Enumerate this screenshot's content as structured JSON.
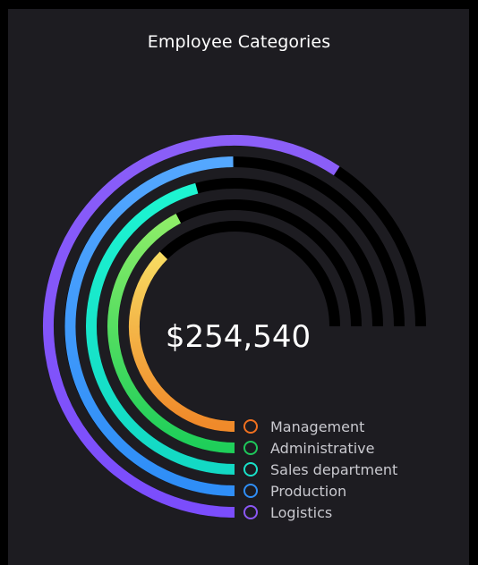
{
  "title": "Employee Categories",
  "total": "$254,540",
  "chart_data": {
    "type": "radial-bar",
    "title": "Employee Categories",
    "center_label": "$254,540",
    "max_angle": 270,
    "series": [
      {
        "name": "Management",
        "fraction": 0.5,
        "colors": [
          "#f08a2a",
          "#f9ee6f"
        ],
        "marker": "#f0701f"
      },
      {
        "name": "Administrative",
        "fraction": 0.565,
        "colors": [
          "#1fcf5a",
          "#9af06a"
        ],
        "marker": "#1ec75a"
      },
      {
        "name": "Sales department",
        "fraction": 0.61,
        "colors": [
          "#13d9c4",
          "#1ef6d2"
        ],
        "marker": "#19e0c8"
      },
      {
        "name": "Production",
        "fraction": 0.665,
        "colors": [
          "#2f8ef7",
          "#55a8ff"
        ],
        "marker": "#2f8ef7"
      },
      {
        "name": "Logistics",
        "fraction": 0.79,
        "colors": [
          "#7b4dfc",
          "#8b5ff8"
        ],
        "marker": "#8b57f5"
      }
    ]
  }
}
